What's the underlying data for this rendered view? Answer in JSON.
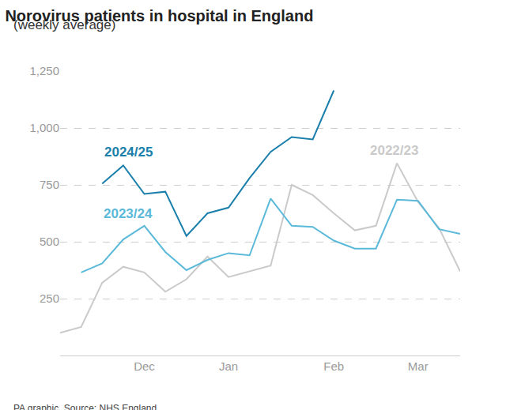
{
  "chart_data": {
    "type": "line",
    "title": "Norovirus patients in hospital in England",
    "subtitle": "(weekly average)",
    "annotations": [
      "PA graphic. Source: NHS England"
    ],
    "categories": [
      null,
      null,
      null,
      null,
      "Dec",
      null,
      null,
      null,
      "Jan",
      null,
      null,
      null,
      null,
      "Feb",
      null,
      null,
      null,
      "Mar",
      null,
      null
    ],
    "series": [
      {
        "name": "2024/25",
        "color": "#1a7fab",
        "values": [
          null,
          null,
          755,
          835,
          710,
          720,
          525,
          625,
          650,
          780,
          895,
          960,
          950,
          1165,
          null,
          null,
          null,
          null,
          null,
          null
        ]
      },
      {
        "name": "2023/24",
        "color": "#5bb9d9",
        "values": [
          null,
          365,
          405,
          510,
          570,
          455,
          375,
          420,
          450,
          440,
          690,
          570,
          565,
          505,
          470,
          470,
          685,
          680,
          555,
          535
        ]
      },
      {
        "name": "2022/23",
        "color": "#cacaca",
        "values": [
          100,
          125,
          320,
          390,
          365,
          280,
          335,
          435,
          345,
          370,
          395,
          750,
          705,
          625,
          550,
          570,
          845,
          675,
          560,
          370
        ]
      }
    ],
    "ylim": [
      0,
      1250
    ],
    "yticks": [
      250,
      500,
      750,
      {
        "value": 1000,
        "label": "1,000"
      },
      {
        "value": 1250,
        "label": "1,250"
      }
    ],
    "grid": true
  }
}
